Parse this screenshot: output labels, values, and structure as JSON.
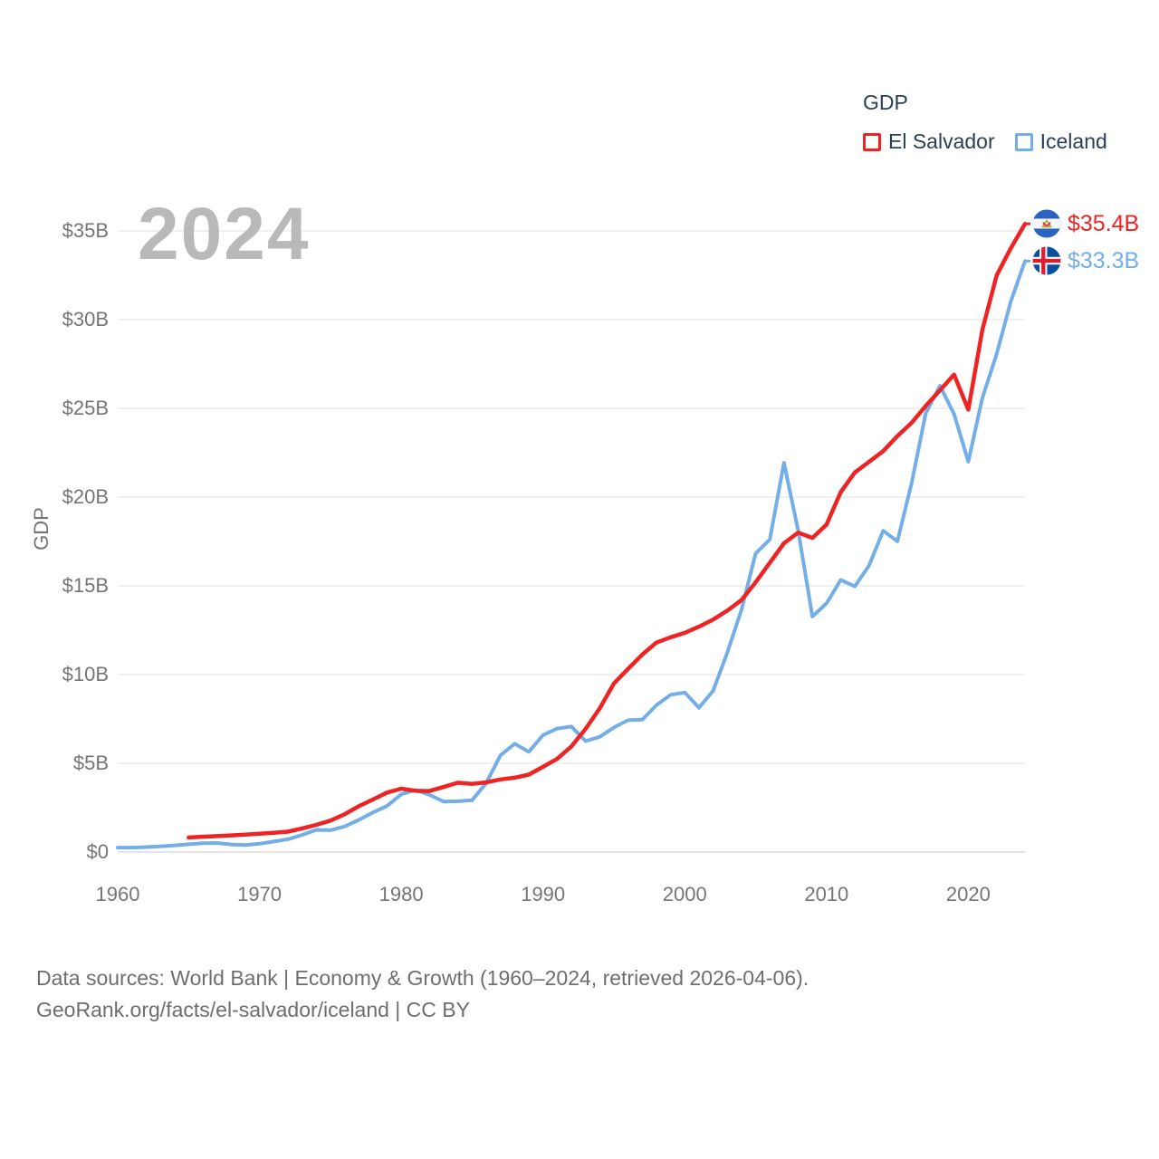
{
  "watermark": "2024",
  "legend": {
    "title": "GDP",
    "items": [
      {
        "label": "El Salvador",
        "color": "#ee2424"
      },
      {
        "label": "Iceland",
        "color": "#74aee8"
      }
    ]
  },
  "axis": {
    "y_title": "GDP"
  },
  "footer": {
    "line1": "Data sources: World Bank | Economy & Growth (1960–2024, retrieved 2026-04-06).",
    "line2": "GeoRank.org/facts/el-salvador/iceland | CC BY"
  },
  "colors": {
    "el_salvador": "#ee2424",
    "iceland": "#74aee8",
    "gridline": "#ececec",
    "baseline": "#dcdcdc",
    "axis_text": "#757575"
  },
  "chart_data": {
    "type": "line",
    "title": "GDP",
    "xlabel": "",
    "ylabel": "GDP",
    "x_range": [
      1960,
      2024
    ],
    "ylim": [
      0,
      35
    ],
    "grid": true,
    "legend_position": "top-right",
    "y_ticks": [
      {
        "v": 0,
        "label": "$0"
      },
      {
        "v": 5,
        "label": "$5B"
      },
      {
        "v": 10,
        "label": "$10B"
      },
      {
        "v": 15,
        "label": "$15B"
      },
      {
        "v": 20,
        "label": "$20B"
      },
      {
        "v": 25,
        "label": "$25B"
      },
      {
        "v": 30,
        "label": "$30B"
      },
      {
        "v": 35,
        "label": "$35B"
      }
    ],
    "x_ticks": [
      {
        "v": 1960,
        "label": "1960"
      },
      {
        "v": 1970,
        "label": "1970"
      },
      {
        "v": 1980,
        "label": "1980"
      },
      {
        "v": 1990,
        "label": "1990"
      },
      {
        "v": 2000,
        "label": "2000"
      },
      {
        "v": 2010,
        "label": "2010"
      },
      {
        "v": 2020,
        "label": "2020"
      }
    ],
    "series": [
      {
        "name": "El Salvador",
        "color": "#ee2424",
        "start_year": 1965,
        "end_label": "$35.4B",
        "values": [
          0.82,
          0.86,
          0.9,
          0.94,
          0.98,
          1.03,
          1.08,
          1.15,
          1.33,
          1.53,
          1.77,
          2.13,
          2.58,
          2.96,
          3.35,
          3.57,
          3.45,
          3.44,
          3.67,
          3.91,
          3.84,
          3.93,
          4.09,
          4.19,
          4.36,
          4.8,
          5.25,
          5.95,
          6.94,
          8.09,
          9.5,
          10.32,
          11.13,
          11.8,
          12.1,
          12.35,
          12.7,
          13.1,
          13.6,
          14.2,
          15.2,
          16.3,
          17.4,
          18.0,
          17.7,
          18.45,
          20.28,
          21.39,
          21.99,
          22.59,
          23.44,
          24.19,
          25.14,
          26.02,
          26.9,
          24.93,
          29.45,
          32.49,
          34.02,
          35.4
        ]
      },
      {
        "name": "Iceland",
        "color": "#74aee8",
        "start_year": 1960,
        "end_label": "$33.3B",
        "values": [
          0.25,
          0.25,
          0.28,
          0.32,
          0.37,
          0.44,
          0.5,
          0.51,
          0.43,
          0.4,
          0.47,
          0.59,
          0.72,
          0.96,
          1.25,
          1.23,
          1.44,
          1.81,
          2.23,
          2.6,
          3.25,
          3.5,
          3.22,
          2.84,
          2.86,
          2.92,
          3.9,
          5.45,
          6.1,
          5.65,
          6.59,
          6.96,
          7.07,
          6.25,
          6.49,
          7.02,
          7.43,
          7.46,
          8.27,
          8.86,
          8.99,
          8.13,
          9.09,
          11.23,
          13.65,
          16.82,
          17.61,
          21.93,
          18.13,
          13.27,
          14.01,
          15.33,
          14.97,
          16.15,
          18.1,
          17.51,
          20.79,
          24.73,
          26.27,
          24.68,
          22.0,
          25.6,
          28.06,
          31.02,
          33.3
        ]
      }
    ]
  }
}
